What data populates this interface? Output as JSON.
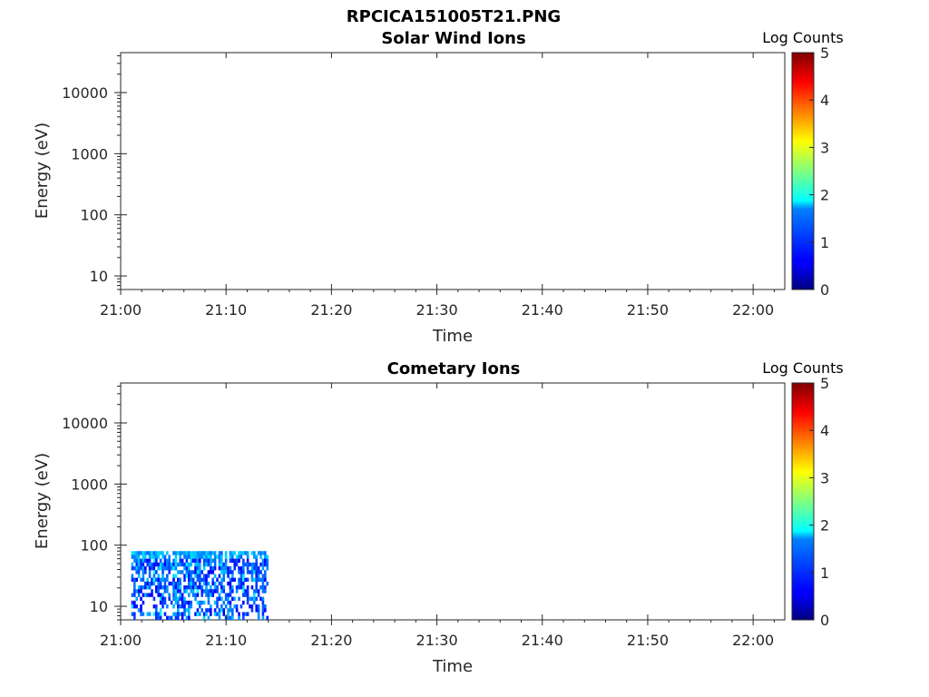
{
  "figure": {
    "title": "RPCICA151005T21.PNG"
  },
  "chart_data": [
    {
      "type": "heatmap",
      "title": "Solar Wind Ions",
      "xlabel": "Time",
      "ylabel": "Energy (eV)",
      "x_ticks": [
        "21:00",
        "21:10",
        "21:20",
        "21:30",
        "21:40",
        "21:50",
        "22:00"
      ],
      "x_range": [
        "21:00",
        "22:03"
      ],
      "y_scale": "log",
      "y_ticks": [
        "10",
        "100",
        "1000",
        "10000"
      ],
      "y_range": [
        6,
        45000
      ],
      "colorbar": {
        "label": "Log Counts",
        "ticks": [
          "0",
          "1",
          "2",
          "3",
          "4",
          "5"
        ],
        "range": [
          0,
          5
        ],
        "colormap": "jet"
      },
      "data_region": null
    },
    {
      "type": "heatmap",
      "title": "Cometary Ions",
      "xlabel": "Time",
      "ylabel": "Energy (eV)",
      "x_ticks": [
        "21:00",
        "21:10",
        "21:20",
        "21:30",
        "21:40",
        "21:50",
        "22:00"
      ],
      "x_range": [
        "21:00",
        "22:03"
      ],
      "y_scale": "log",
      "y_ticks": [
        "10",
        "100",
        "1000",
        "10000"
      ],
      "y_range": [
        6,
        45000
      ],
      "colorbar": {
        "label": "Log Counts",
        "ticks": [
          "0",
          "1",
          "2",
          "3",
          "4",
          "5"
        ],
        "range": [
          0,
          5
        ],
        "colormap": "jet"
      },
      "data_region": {
        "time_start": "21:01",
        "time_end": "21:14",
        "energy_min": 6,
        "energy_max": 80,
        "log_counts_typical": [
          0,
          1.5
        ]
      }
    }
  ],
  "colors": {
    "jet_low": "#00007f",
    "jet_high": "#7f0000"
  }
}
